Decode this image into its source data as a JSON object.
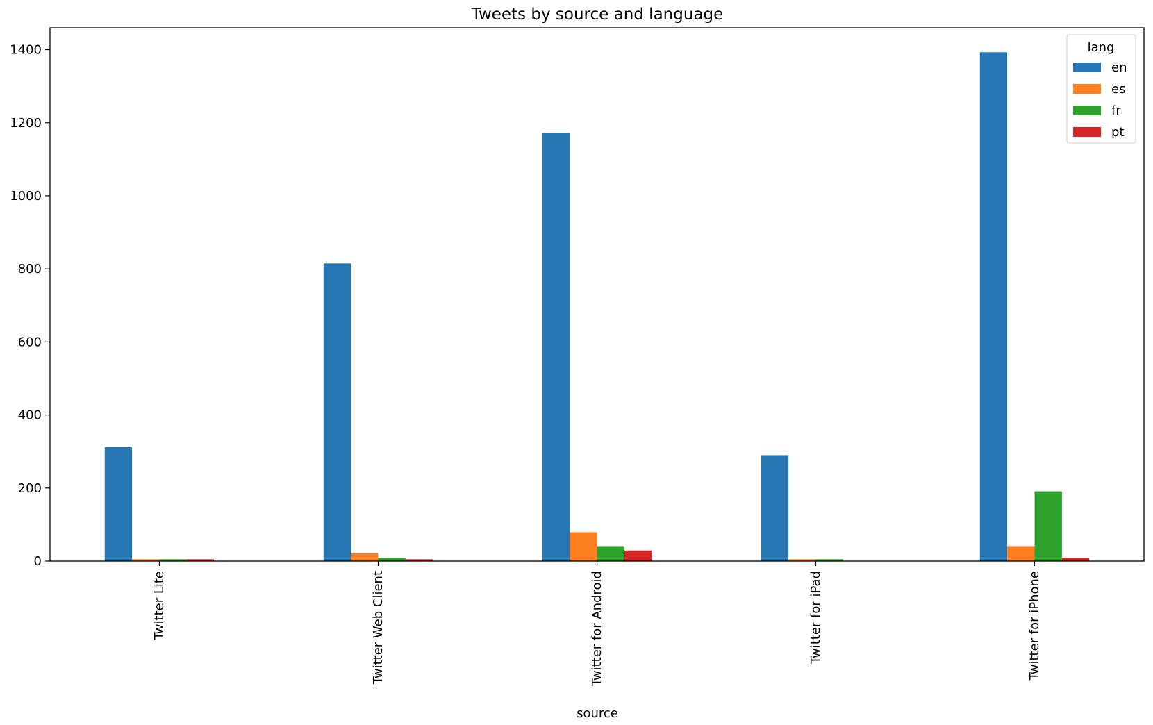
{
  "chart_data": {
    "type": "bar",
    "title": "Tweets by source and language",
    "xlabel": "source",
    "ylabel": "",
    "categories": [
      "Twitter Lite",
      "Twitter Web Client",
      "Twitter for Android",
      "Twitter for iPad",
      "Twitter for iPhone"
    ],
    "series": [
      {
        "name": "en",
        "color": "#2677b4",
        "values": [
          312,
          815,
          1172,
          290,
          1393
        ]
      },
      {
        "name": "es",
        "color": "#fd7f1f",
        "values": [
          5,
          21,
          79,
          5,
          41
        ]
      },
      {
        "name": "fr",
        "color": "#2ea02c",
        "values": [
          5,
          9,
          41,
          5,
          191
        ]
      },
      {
        "name": "pt",
        "color": "#d62727",
        "values": [
          5,
          5,
          29,
          0,
          9
        ]
      }
    ],
    "ylim": [
      0,
      1460
    ],
    "yticks": [
      0,
      200,
      400,
      600,
      800,
      1000,
      1200,
      1400
    ],
    "legend": {
      "title": "lang",
      "placement": "top-right"
    },
    "grid": false
  }
}
